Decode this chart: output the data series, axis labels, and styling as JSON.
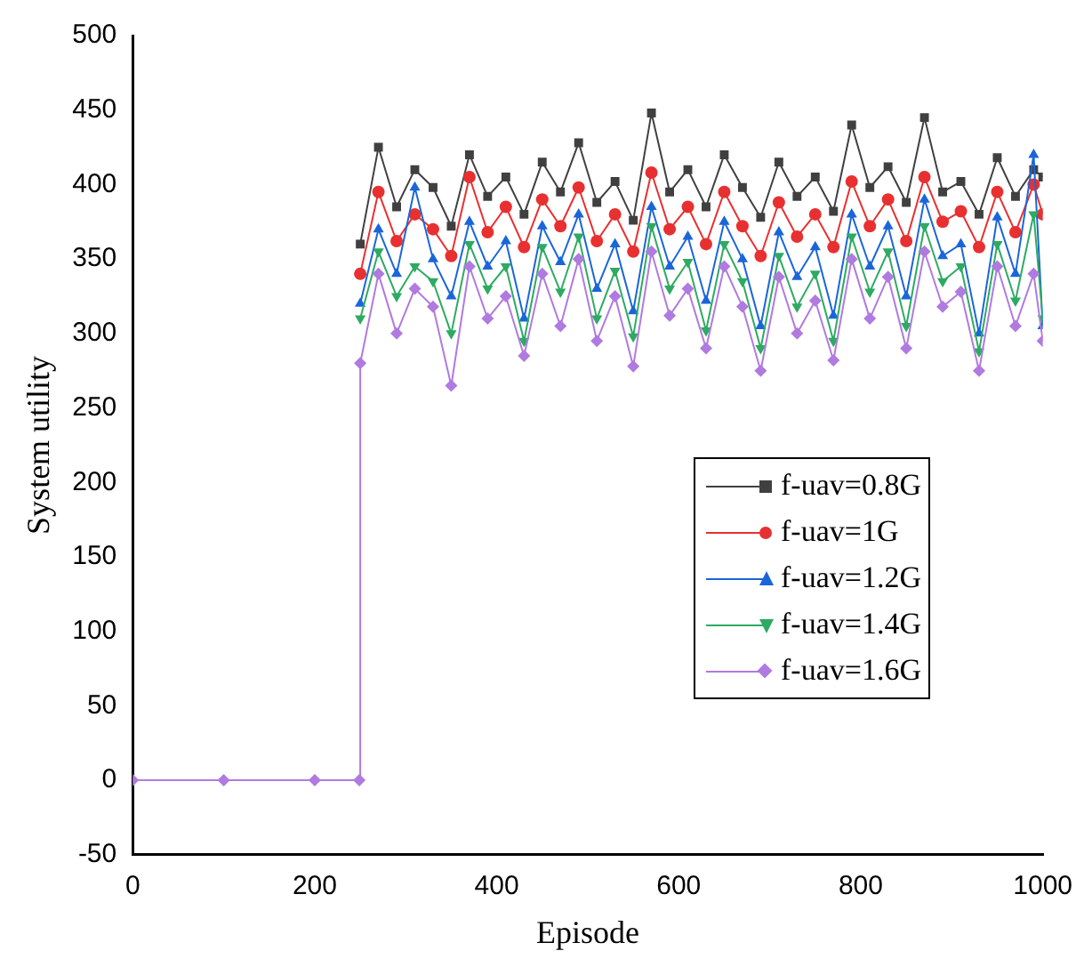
{
  "chart_data": {
    "type": "line",
    "xlabel": "Episode",
    "ylabel": "System utility",
    "xlim": [
      0,
      1000
    ],
    "xticks": [
      0,
      200,
      400,
      600,
      800,
      1000
    ],
    "ylim": [
      -50,
      500
    ],
    "yticks": [
      -50,
      0,
      50,
      100,
      150,
      200,
      250,
      300,
      350,
      400,
      450,
      500
    ],
    "grid": false,
    "legend": "right",
    "line_style": "solid",
    "x": [
      0,
      100,
      200,
      249,
      250,
      270,
      290,
      310,
      330,
      350,
      370,
      390,
      410,
      430,
      450,
      470,
      490,
      510,
      530,
      550,
      570,
      590,
      610,
      630,
      650,
      670,
      690,
      710,
      730,
      750,
      770,
      790,
      810,
      830,
      850,
      870,
      890,
      910,
      930,
      950,
      970,
      990,
      1000
    ],
    "series": [
      {
        "name": "f-uav=0.8G",
        "color": "#404040",
        "marker": "square",
        "values": [
          null,
          null,
          null,
          null,
          360,
          425,
          385,
          410,
          398,
          372,
          420,
          392,
          405,
          380,
          415,
          395,
          428,
          388,
          402,
          376,
          448,
          395,
          410,
          385,
          420,
          398,
          378,
          415,
          392,
          405,
          382,
          440,
          398,
          412,
          388,
          445,
          395,
          402,
          380,
          418,
          392,
          410,
          405
        ]
      },
      {
        "name": "f-uav=1G",
        "color": "#e83030",
        "marker": "circle",
        "values": [
          null,
          null,
          null,
          null,
          340,
          395,
          362,
          380,
          370,
          352,
          405,
          368,
          385,
          358,
          390,
          372,
          398,
          362,
          380,
          355,
          408,
          370,
          385,
          360,
          395,
          372,
          352,
          388,
          365,
          380,
          358,
          402,
          372,
          390,
          362,
          405,
          375,
          382,
          358,
          395,
          368,
          400,
          380
        ]
      },
      {
        "name": "f-uav=1.2G",
        "color": "#1a66d9",
        "marker": "triangle",
        "values": [
          null,
          null,
          null,
          null,
          320,
          370,
          340,
          398,
          350,
          325,
          375,
          345,
          362,
          310,
          372,
          348,
          380,
          330,
          360,
          315,
          385,
          345,
          365,
          322,
          375,
          350,
          305,
          368,
          338,
          358,
          312,
          380,
          345,
          372,
          325,
          390,
          352,
          360,
          300,
          378,
          340,
          420,
          305
        ]
      },
      {
        "name": "f-uav=1.4G",
        "color": "#2eaa62",
        "marker": "triangle-down",
        "values": [
          null,
          null,
          null,
          null,
          310,
          355,
          325,
          345,
          335,
          300,
          360,
          330,
          345,
          295,
          358,
          328,
          365,
          310,
          342,
          298,
          372,
          330,
          348,
          302,
          360,
          335,
          290,
          352,
          318,
          340,
          295,
          365,
          328,
          355,
          305,
          372,
          335,
          345,
          288,
          360,
          322,
          380,
          310
        ]
      },
      {
        "name": "f-uav=1.6G",
        "color": "#b07ae0",
        "marker": "diamond",
        "values": [
          0,
          0,
          0,
          0,
          280,
          340,
          300,
          330,
          318,
          265,
          345,
          310,
          325,
          285,
          340,
          305,
          350,
          295,
          325,
          278,
          355,
          312,
          330,
          290,
          345,
          318,
          275,
          338,
          300,
          322,
          282,
          350,
          310,
          338,
          290,
          355,
          318,
          328,
          275,
          345,
          305,
          340,
          295
        ]
      }
    ]
  }
}
